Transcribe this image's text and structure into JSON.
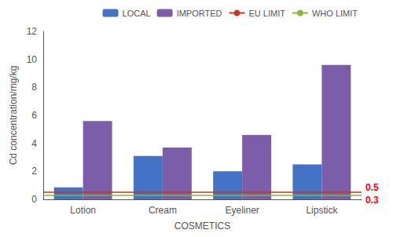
{
  "chart_data": {
    "type": "bar",
    "xlabel": "COSMETICS",
    "ylabel": "Cd concentration/mg/kg",
    "categories": [
      "Lotion",
      "Cream",
      "Eyeliner",
      "Lipstick"
    ],
    "series": [
      {
        "name": "LOCAL",
        "type": "bar",
        "color": "#4472C4",
        "values": [
          0.85,
          3.1,
          2.0,
          2.5
        ]
      },
      {
        "name": "IMPORTED",
        "type": "bar",
        "color": "#7B5EA7",
        "values": [
          5.6,
          3.7,
          4.6,
          9.6
        ]
      },
      {
        "name": "EU LIMIT",
        "type": "hline",
        "color": "#C0392B",
        "y": 0.5
      },
      {
        "name": "WHO LIMIT",
        "type": "hline",
        "color": "#8DB53C",
        "y": 0.3
      }
    ],
    "annotations": [
      {
        "text": "0.5",
        "y": 0.5,
        "color": "#FF0000"
      },
      {
        "text": "0.3",
        "y": 0.3,
        "color": "#FF0000"
      }
    ],
    "ylim": [
      0,
      12
    ],
    "yticks": [
      0,
      2,
      4,
      6,
      8,
      10,
      12
    ],
    "grid": false,
    "legend": "upper right"
  }
}
